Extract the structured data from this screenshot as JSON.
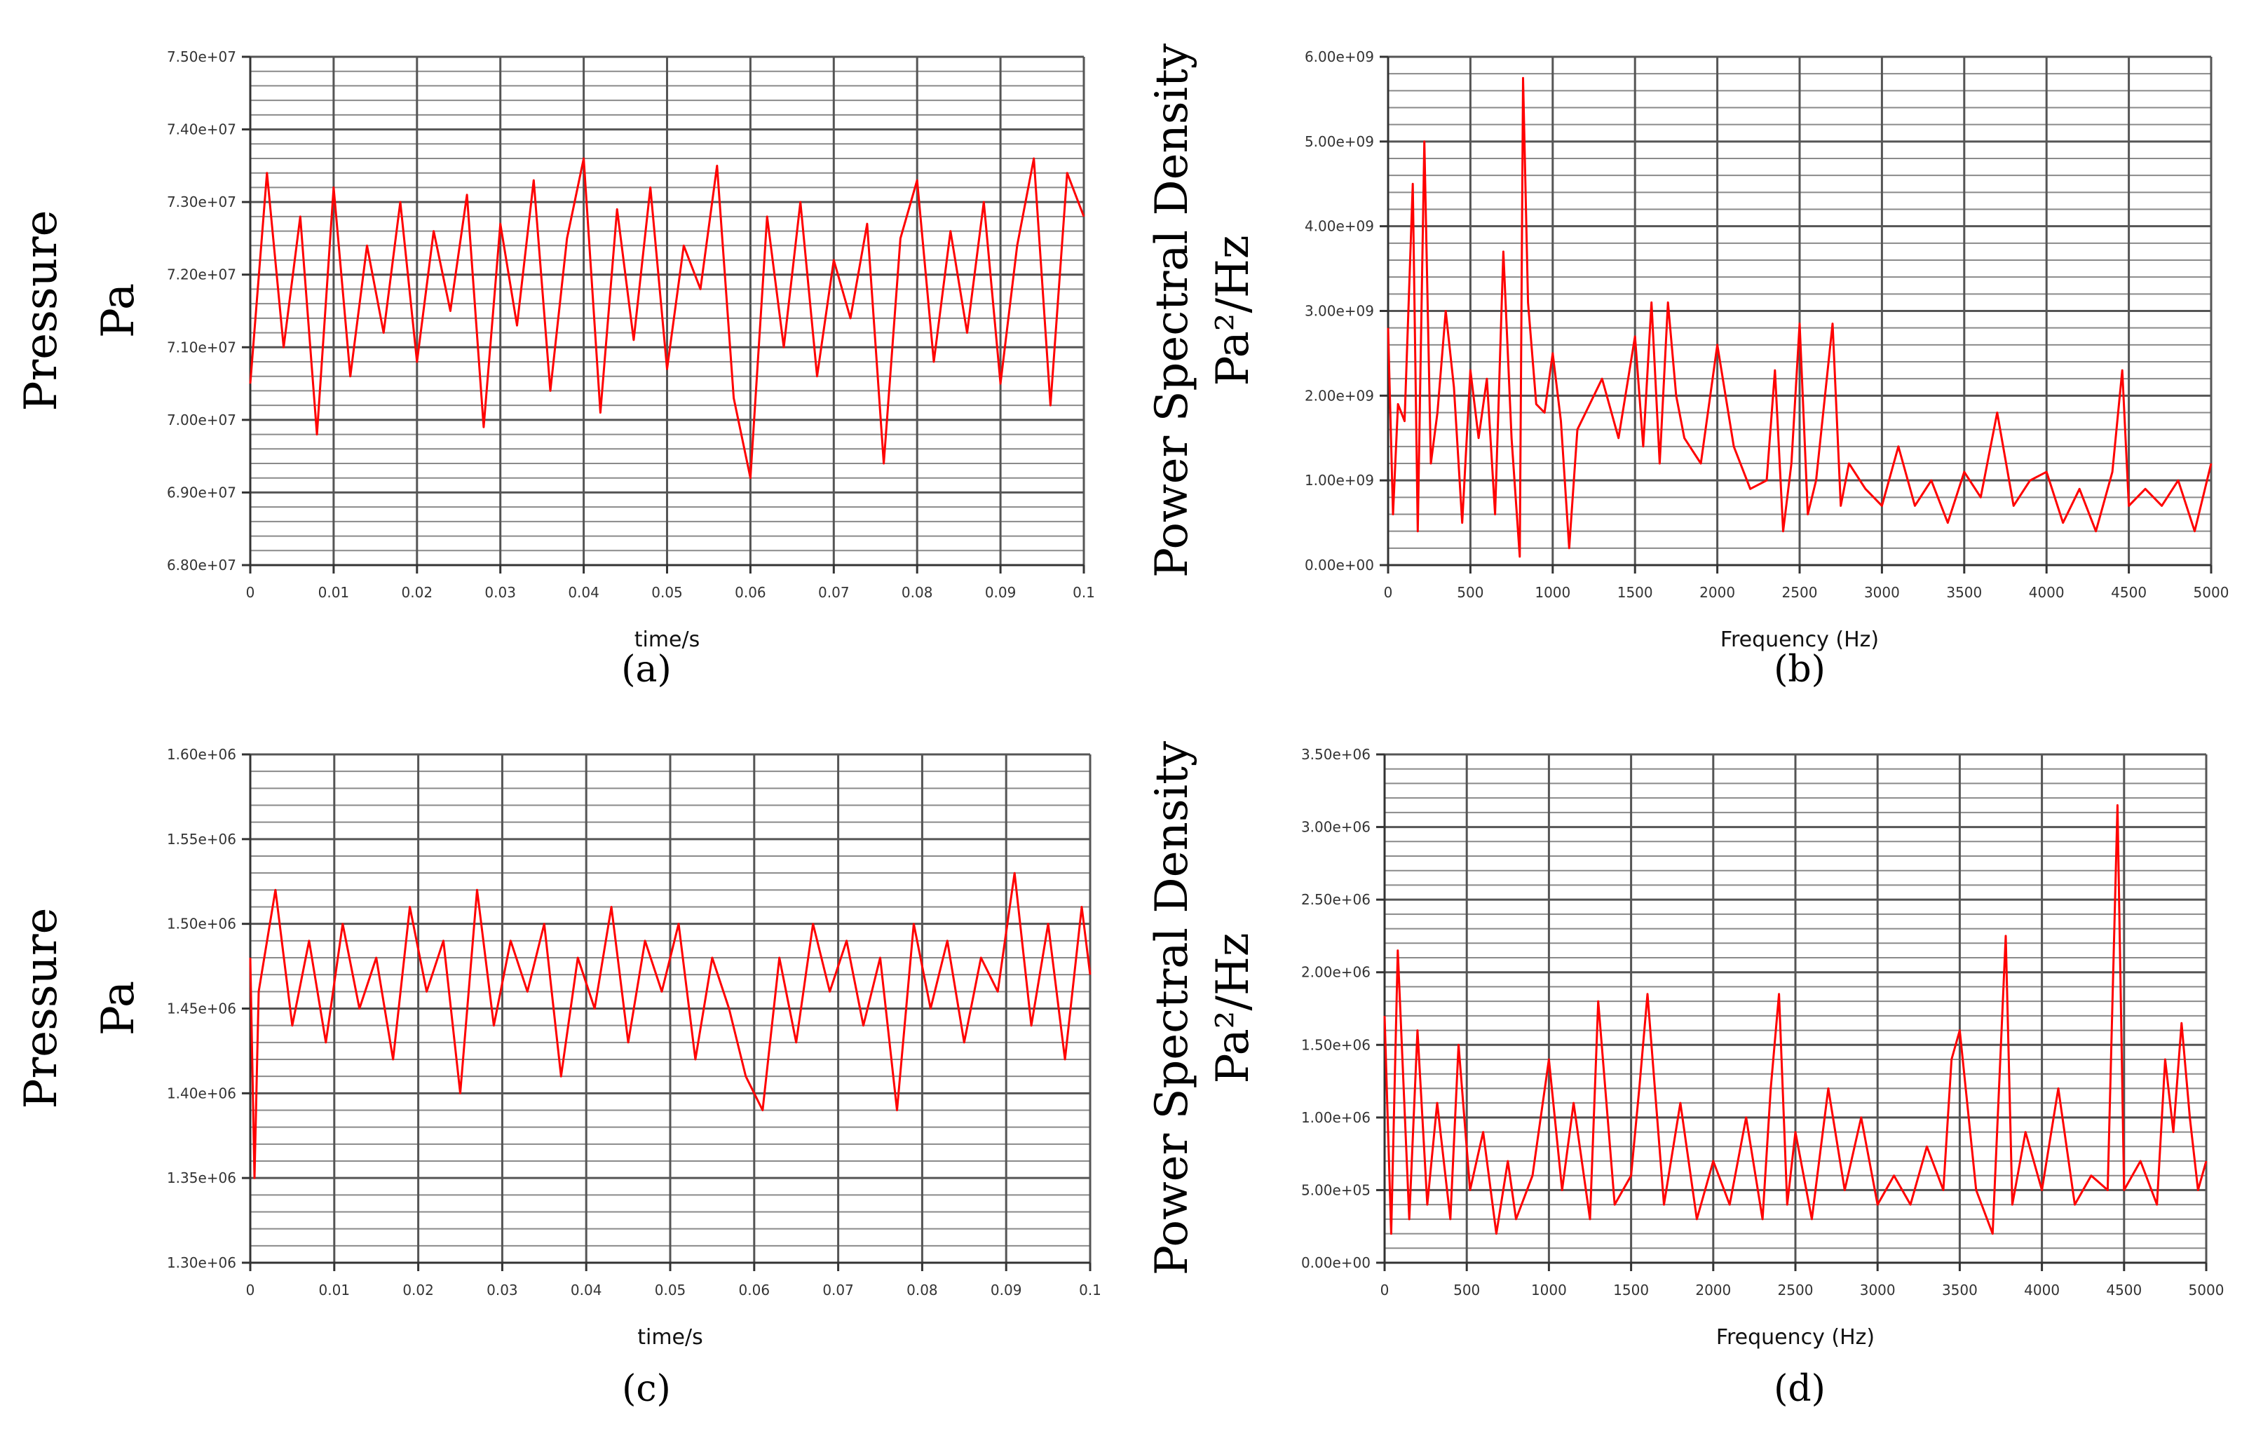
{
  "chart_data": [
    {
      "id": "a",
      "type": "line",
      "caption": "(a)",
      "xlabel": "time/s",
      "ylabel": [
        "Pressure",
        "Pa"
      ],
      "xlim": [
        0,
        0.1
      ],
      "ylim": [
        68000000,
        75000000
      ],
      "xticks": [
        "0",
        "0.01",
        "0.02",
        "0.03",
        "0.04",
        "0.05",
        "0.06",
        "0.07",
        "0.08",
        "0.09",
        "0.1"
      ],
      "yticks": [
        "6.80e+07",
        "6.90e+07",
        "7.00e+07",
        "7.10e+07",
        "7.20e+07",
        "7.30e+07",
        "7.40e+07",
        "7.50e+07"
      ],
      "grid": true,
      "series": [
        {
          "name": "pressure",
          "color": "#ff0000",
          "x": [
            0,
            0.002,
            0.004,
            0.006,
            0.008,
            0.01,
            0.012,
            0.014,
            0.016,
            0.018,
            0.02,
            0.022,
            0.024,
            0.026,
            0.028,
            0.03,
            0.032,
            0.034,
            0.036,
            0.038,
            0.04,
            0.042,
            0.044,
            0.046,
            0.048,
            0.05,
            0.052,
            0.054,
            0.056,
            0.058,
            0.06,
            0.062,
            0.064,
            0.066,
            0.068,
            0.07,
            0.072,
            0.074,
            0.076,
            0.078,
            0.08,
            0.082,
            0.084,
            0.086,
            0.088,
            0.09,
            0.092,
            0.094,
            0.096,
            0.098,
            0.1
          ],
          "y": [
            70500000,
            73400000,
            71000000,
            72800000,
            69800000,
            73200000,
            70600000,
            72400000,
            71200000,
            73000000,
            70800000,
            72600000,
            71500000,
            73100000,
            69900000,
            72700000,
            71300000,
            73300000,
            70400000,
            72500000,
            73600000,
            70100000,
            72900000,
            71100000,
            73200000,
            70700000,
            72400000,
            71800000,
            73500000,
            70300000,
            69200000,
            72800000,
            71000000,
            73000000,
            70600000,
            72200000,
            71400000,
            72700000,
            69400000,
            72500000,
            73300000,
            70800000,
            72600000,
            71200000,
            73000000,
            70500000,
            72400000,
            73600000,
            70200000,
            73400000,
            72800000
          ]
        }
      ]
    },
    {
      "id": "b",
      "type": "line",
      "caption": "(b)",
      "xlabel": "Frequency (Hz)",
      "ylabel": [
        "Power Spectral Density",
        "Pa²/Hz"
      ],
      "xlim": [
        0,
        5000
      ],
      "ylim": [
        0,
        6000000000
      ],
      "xticks": [
        "0",
        "500",
        "1000",
        "1500",
        "2000",
        "2500",
        "3000",
        "3500",
        "4000",
        "4500",
        "5000"
      ],
      "yticks": [
        "0.00e+00",
        "1.00e+09",
        "2.00e+09",
        "3.00e+09",
        "4.00e+09",
        "5.00e+09",
        "6.00e+09"
      ],
      "grid": true,
      "series": [
        {
          "name": "psd",
          "color": "#ff0000",
          "x": [
            0,
            30,
            60,
            100,
            150,
            180,
            220,
            260,
            300,
            350,
            400,
            450,
            500,
            550,
            600,
            650,
            700,
            750,
            800,
            820,
            850,
            900,
            950,
            1000,
            1050,
            1100,
            1150,
            1200,
            1300,
            1400,
            1500,
            1550,
            1600,
            1650,
            1700,
            1750,
            1800,
            1900,
            2000,
            2100,
            2200,
            2300,
            2350,
            2400,
            2450,
            2500,
            2550,
            2600,
            2700,
            2750,
            2800,
            2900,
            3000,
            3100,
            3200,
            3300,
            3400,
            3500,
            3600,
            3700,
            3800,
            3900,
            4000,
            4100,
            4200,
            4300,
            4400,
            4460,
            4500,
            4600,
            4700,
            4800,
            4900,
            5000
          ],
          "y": [
            2800000000,
            600000000,
            1900000000,
            1700000000,
            4500000000,
            400000000,
            5000000000,
            1200000000,
            1800000000,
            3000000000,
            2100000000,
            500000000,
            2300000000,
            1500000000,
            2200000000,
            600000000,
            3700000000,
            1500000000,
            100000000,
            5750000000,
            3100000000,
            1900000000,
            1800000000,
            2500000000,
            1700000000,
            200000000,
            1600000000,
            1800000000,
            2200000000,
            1500000000,
            2700000000,
            1400000000,
            3100000000,
            1200000000,
            3100000000,
            2000000000,
            1500000000,
            1200000000,
            2600000000,
            1400000000,
            900000000,
            1000000000,
            2300000000,
            400000000,
            1200000000,
            2850000000,
            600000000,
            1000000000,
            2850000000,
            700000000,
            1200000000,
            900000000,
            700000000,
            1400000000,
            700000000,
            1000000000,
            500000000,
            1100000000,
            800000000,
            1800000000,
            700000000,
            1000000000,
            1100000000,
            500000000,
            900000000,
            400000000,
            1100000000,
            2300000000,
            700000000,
            900000000,
            700000000,
            1000000000,
            400000000,
            1200000000
          ]
        }
      ]
    },
    {
      "id": "c",
      "type": "line",
      "caption": "(c)",
      "xlabel": "time/s",
      "ylabel": [
        "Pressure",
        "Pa"
      ],
      "xlim": [
        0,
        0.1
      ],
      "ylim": [
        1300000,
        1600000
      ],
      "xticks": [
        "0",
        "0.01",
        "0.02",
        "0.03",
        "0.04",
        "0.05",
        "0.06",
        "0.07",
        "0.08",
        "0.09",
        "0.1"
      ],
      "yticks": [
        "1.30e+06",
        "1.35e+06",
        "1.40e+06",
        "1.45e+06",
        "1.50e+06",
        "1.55e+06",
        "1.60e+06"
      ],
      "grid": true,
      "series": [
        {
          "name": "pressure",
          "color": "#ff0000",
          "x": [
            0,
            0.0005,
            0.001,
            0.003,
            0.005,
            0.007,
            0.009,
            0.011,
            0.013,
            0.015,
            0.017,
            0.019,
            0.021,
            0.023,
            0.025,
            0.027,
            0.029,
            0.031,
            0.033,
            0.035,
            0.037,
            0.039,
            0.041,
            0.043,
            0.045,
            0.047,
            0.049,
            0.051,
            0.053,
            0.055,
            0.057,
            0.059,
            0.061,
            0.063,
            0.065,
            0.067,
            0.069,
            0.071,
            0.073,
            0.075,
            0.077,
            0.079,
            0.081,
            0.083,
            0.085,
            0.087,
            0.089,
            0.091,
            0.093,
            0.095,
            0.097,
            0.099,
            0.1
          ],
          "y": [
            1480000,
            1350000,
            1460000,
            1520000,
            1440000,
            1490000,
            1430000,
            1500000,
            1450000,
            1480000,
            1420000,
            1510000,
            1460000,
            1490000,
            1400000,
            1520000,
            1440000,
            1490000,
            1460000,
            1500000,
            1410000,
            1480000,
            1450000,
            1510000,
            1430000,
            1490000,
            1460000,
            1500000,
            1420000,
            1480000,
            1450000,
            1410000,
            1390000,
            1480000,
            1430000,
            1500000,
            1460000,
            1490000,
            1440000,
            1480000,
            1390000,
            1500000,
            1450000,
            1490000,
            1430000,
            1480000,
            1460000,
            1530000,
            1440000,
            1500000,
            1420000,
            1510000,
            1470000
          ]
        }
      ]
    },
    {
      "id": "d",
      "type": "line",
      "caption": "(d)",
      "xlabel": "Frequency (Hz)",
      "ylabel": [
        "Power Spectral Density",
        "Pa²/Hz"
      ],
      "xlim": [
        0,
        5000
      ],
      "ylim": [
        0,
        3500000
      ],
      "xticks": [
        "0",
        "500",
        "1000",
        "1500",
        "2000",
        "2500",
        "3000",
        "3500",
        "4000",
        "4500",
        "5000"
      ],
      "yticks": [
        "0.00e+00",
        "5.00e+05",
        "1.00e+06",
        "1.50e+06",
        "2.00e+06",
        "2.50e+06",
        "3.00e+06",
        "3.50e+06"
      ],
      "grid": true,
      "series": [
        {
          "name": "psd",
          "color": "#ff0000",
          "x": [
            0,
            40,
            80,
            150,
            200,
            260,
            320,
            400,
            450,
            520,
            600,
            680,
            750,
            800,
            900,
            1000,
            1080,
            1150,
            1250,
            1300,
            1400,
            1500,
            1550,
            1600,
            1700,
            1800,
            1900,
            2000,
            2100,
            2200,
            2300,
            2350,
            2400,
            2450,
            2500,
            2600,
            2700,
            2800,
            2900,
            3000,
            3100,
            3200,
            3300,
            3400,
            3450,
            3500,
            3600,
            3700,
            3780,
            3820,
            3900,
            4000,
            4100,
            4200,
            4300,
            4400,
            4460,
            4500,
            4600,
            4700,
            4750,
            4800,
            4850,
            4900,
            4950,
            5000
          ],
          "y": [
            1700000,
            200000,
            2150000,
            300000,
            1600000,
            400000,
            1100000,
            300000,
            1500000,
            500000,
            900000,
            200000,
            700000,
            300000,
            600000,
            1400000,
            500000,
            1100000,
            300000,
            1800000,
            400000,
            600000,
            1200000,
            1850000,
            400000,
            1100000,
            300000,
            700000,
            400000,
            1000000,
            300000,
            1200000,
            1850000,
            400000,
            900000,
            300000,
            1200000,
            500000,
            1000000,
            400000,
            600000,
            400000,
            800000,
            500000,
            1400000,
            1600000,
            500000,
            200000,
            2250000,
            400000,
            900000,
            500000,
            1200000,
            400000,
            600000,
            500000,
            3150000,
            500000,
            700000,
            400000,
            1400000,
            900000,
            1650000,
            1000000,
            500000,
            700000
          ]
        }
      ]
    }
  ]
}
